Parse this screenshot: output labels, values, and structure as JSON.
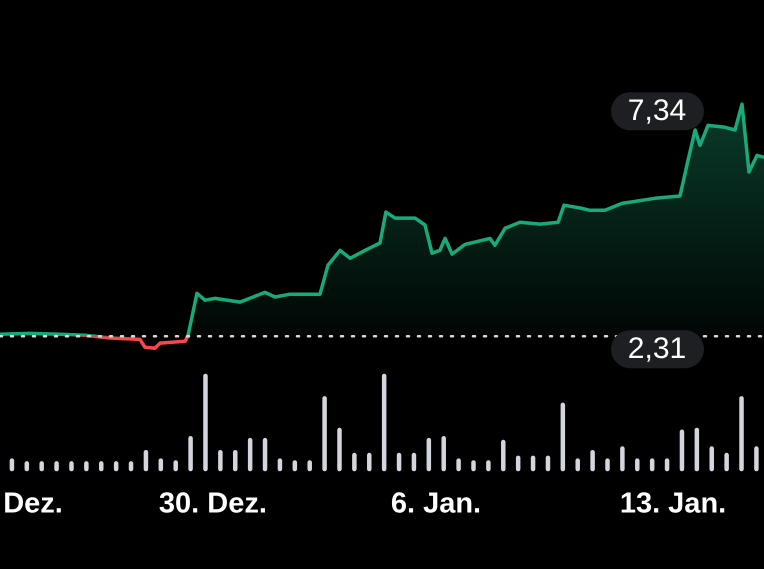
{
  "chart_data": {
    "type": "line",
    "xlim": [
      -0.8,
      50.51
    ],
    "ylim": [
      1.36,
      9.6
    ],
    "xticks": [
      {
        "value": 1.42,
        "label": "Dez."
      },
      {
        "value": 13.5,
        "label": "30. Dez."
      },
      {
        "value": 28.48,
        "label": "6. Jan."
      },
      {
        "value": 44.4,
        "label": "13. Jan."
      }
    ],
    "reference": {
      "value": 2.31,
      "label": "2,31"
    },
    "high": {
      "value": 7.34,
      "label": "7,34"
    },
    "series": [
      {
        "color": "#1aa97b",
        "down_color": "#f24b4b",
        "x": [
          -0.8,
          1.21,
          3.23,
          4.91,
          6.59,
          8.6,
          8.94,
          9.61,
          9.95,
          11.63,
          11.83,
          12.43,
          12.97,
          13.64,
          15.32,
          17.0,
          17.67,
          18.68,
          20.69,
          21.23,
          22.04,
          22.71,
          23.71,
          24.72,
          25.12,
          25.73,
          27.07,
          27.74,
          28.21,
          28.74,
          29.09,
          29.56,
          30.43,
          32.11,
          32.44,
          33.12,
          34.12,
          35.47,
          36.68,
          37.08,
          38.16,
          38.82,
          39.83,
          40.97,
          43.19,
          44.87,
          45.41,
          45.88,
          46.21,
          46.75,
          47.89,
          48.56,
          49.03,
          49.5,
          50.04,
          50.51
        ],
        "values": [
          2.35,
          2.37,
          2.35,
          2.33,
          2.27,
          2.24,
          2.07,
          2.05,
          2.16,
          2.2,
          2.33,
          3.24,
          3.09,
          3.13,
          3.05,
          3.26,
          3.16,
          3.22,
          3.22,
          3.85,
          4.17,
          4.0,
          4.17,
          4.33,
          5.0,
          4.87,
          4.87,
          4.72,
          4.11,
          4.17,
          4.43,
          4.09,
          4.3,
          4.43,
          4.28,
          4.65,
          4.78,
          4.74,
          4.78,
          5.15,
          5.09,
          5.04,
          5.04,
          5.19,
          5.3,
          5.35,
          6.13,
          6.78,
          6.45,
          6.88,
          6.84,
          6.78,
          7.34,
          5.87,
          6.23,
          6.19
        ]
      }
    ],
    "volume": {
      "type": "bar",
      "color": "#d3d6dc",
      "ylim": [
        0,
        100
      ],
      "values": [
        9,
        6,
        6,
        6,
        6,
        6,
        6,
        6,
        6,
        18,
        9,
        7,
        33,
        100,
        18,
        18,
        31,
        31,
        9,
        7,
        7,
        76,
        42,
        15,
        15,
        100,
        15,
        15,
        31,
        33,
        9,
        7,
        7,
        29,
        12,
        12,
        12,
        69,
        9,
        18,
        9,
        22,
        9,
        9,
        9,
        40,
        42,
        22,
        15,
        76,
        22
      ]
    }
  }
}
